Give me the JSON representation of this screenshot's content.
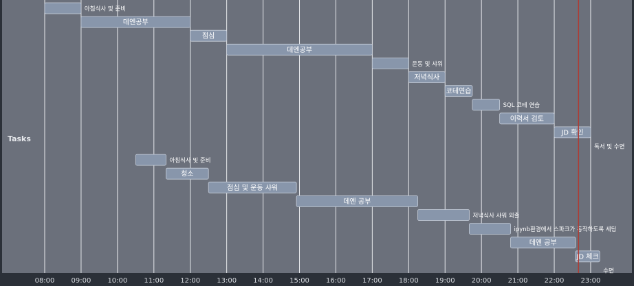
{
  "chart_data": {
    "type": "gantt",
    "ylabel": "Tasks",
    "x_ticks": [
      "08:00",
      "09:00",
      "10:00",
      "11:00",
      "12:00",
      "13:00",
      "14:00",
      "15:00",
      "16:00",
      "17:00",
      "18:00",
      "19:00",
      "20:00",
      "21:00",
      "22:00",
      "23:00"
    ],
    "xlim": [
      "07:30",
      "23:55"
    ],
    "current_time": "22:40",
    "tasks": [
      {
        "label": "아침식사 및 준비",
        "start": "08:00",
        "end": "09:00",
        "label_pos": "outside"
      },
      {
        "label": "데엔공부",
        "start": "09:00",
        "end": "12:00",
        "label_pos": "inside"
      },
      {
        "label": "점심",
        "start": "12:00",
        "end": "13:00",
        "label_pos": "inside"
      },
      {
        "label": "데엔공부",
        "start": "13:00",
        "end": "17:00",
        "label_pos": "inside"
      },
      {
        "label": "운동 및 샤워",
        "start": "17:00",
        "end": "18:00",
        "label_pos": "outside"
      },
      {
        "label": "저녁식사",
        "start": "18:00",
        "end": "19:00",
        "label_pos": "inside"
      },
      {
        "label": "코테연습",
        "start": "19:00",
        "end": "19:45",
        "label_pos": "inside"
      },
      {
        "label": "SQL 코테 연습",
        "start": "19:45",
        "end": "20:30",
        "label_pos": "outside"
      },
      {
        "label": "이력서 검토",
        "start": "20:30",
        "end": "22:00",
        "label_pos": "inside"
      },
      {
        "label": "JD 확인",
        "start": "22:00",
        "end": "23:00",
        "label_pos": "inside"
      },
      {
        "label": "독서 및 수면",
        "start": "23:00",
        "end": "23:00",
        "label_pos": "outside"
      },
      {
        "label": "아침식사 및 준비",
        "start": "10:30",
        "end": "11:20",
        "label_pos": "outside"
      },
      {
        "label": "청소",
        "start": "11:20",
        "end": "12:30",
        "label_pos": "inside"
      },
      {
        "label": "점심 및 운동 샤워",
        "start": "12:30",
        "end": "14:55",
        "label_pos": "inside"
      },
      {
        "label": "데엔 공부",
        "start": "14:55",
        "end": "18:15",
        "label_pos": "inside"
      },
      {
        "label": "저녁식사 샤워 외출",
        "start": "18:15",
        "end": "19:40",
        "label_pos": "outside"
      },
      {
        "label": "ipynb환경에서 스파크가 동작하도록 세팅",
        "start": "19:40",
        "end": "20:48",
        "label_pos": "outside"
      },
      {
        "label": "데엔 공부",
        "start": "20:48",
        "end": "22:35",
        "label_pos": "inside"
      },
      {
        "label": "JD 체크",
        "start": "22:35",
        "end": "23:15",
        "label_pos": "inside"
      },
      {
        "label": "수면",
        "start": "23:15",
        "end": "23:15",
        "label_pos": "outside"
      }
    ]
  }
}
